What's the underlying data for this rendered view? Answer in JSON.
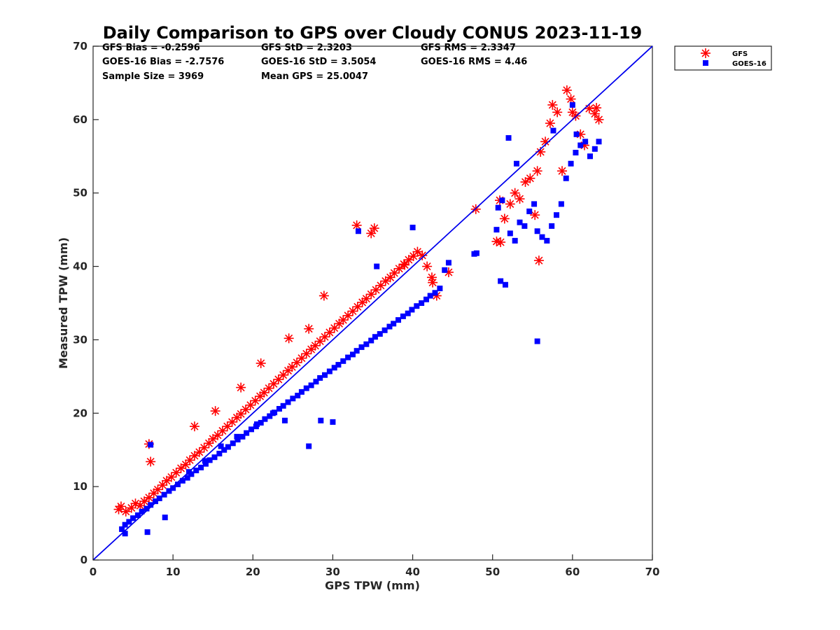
{
  "chart_data": {
    "type": "scatter",
    "title": "Daily Comparison to GPS over Cloudy CONUS 2023-11-19",
    "xlabel": "GPS TPW (mm)",
    "ylabel": "Measured TPW (mm)",
    "xlim": [
      0,
      70
    ],
    "ylim": [
      0,
      70
    ],
    "xticks": [
      "0",
      "10",
      "20",
      "30",
      "40",
      "50",
      "60",
      "70"
    ],
    "yticks": [
      "0",
      "10",
      "20",
      "30",
      "40",
      "50",
      "60",
      "70"
    ],
    "grid": false,
    "legend_position": "outside top-right",
    "reference_line": {
      "x": [
        0,
        70
      ],
      "y": [
        0,
        70
      ],
      "color": "#0000ee"
    },
    "stats": [
      [
        "GFS Bias = -0.2596",
        "GFS StD = 2.3203",
        "GFS RMS = 2.3347"
      ],
      [
        "GOES-16 Bias = -2.7576",
        "GOES-16 StD = 3.5054",
        "GOES-16 RMS = 4.46"
      ],
      [
        "Sample Size = 3969",
        "Mean GPS = 25.0047",
        ""
      ]
    ],
    "series": [
      {
        "name": "GFS",
        "marker": "asterisk",
        "color": "#ff0000",
        "bias_note_only": false,
        "x": [
          3.2,
          3.5,
          4.1,
          4.8,
          5.3,
          5.9,
          6.4,
          7.0,
          7.6,
          8.1,
          8.7,
          9.2,
          9.8,
          10.4,
          11.0,
          11.6,
          12.1,
          12.7,
          13.3,
          13.9,
          14.5,
          15.0,
          15.6,
          16.2,
          16.8,
          17.4,
          18.0,
          18.5,
          19.1,
          19.7,
          20.3,
          20.9,
          21.4,
          22.0,
          22.6,
          23.2,
          23.8,
          24.4,
          24.9,
          25.5,
          26.1,
          26.7,
          27.3,
          27.8,
          28.4,
          29.0,
          29.6,
          30.2,
          30.8,
          31.3,
          31.9,
          32.5,
          33.1,
          33.7,
          34.2,
          34.8,
          35.4,
          36.0,
          36.6,
          37.2,
          37.7,
          38.3,
          38.9,
          39.5,
          40.1,
          40.6,
          41.2,
          41.8,
          42.4,
          43.0,
          44.5,
          47.9,
          50.5,
          50.9,
          51.5,
          52.2,
          52.8,
          53.4,
          54.1,
          54.7,
          55.3,
          55.6,
          56.0,
          56.6,
          57.2,
          57.5,
          58.1,
          58.7,
          59.3,
          59.8,
          60.4,
          61.0,
          61.5,
          62.1,
          62.8,
          63.3,
          7.0,
          7.2,
          12.7,
          15.3,
          18.5,
          21.0,
          24.5,
          27.0,
          28.9,
          33.0,
          34.8,
          35.2,
          39.0,
          42.5,
          55.8,
          51.0,
          60.0,
          63.0
        ],
        "y": [
          6.9,
          7.3,
          6.6,
          7.1,
          7.7,
          7.4,
          8.0,
          8.5,
          9.1,
          9.6,
          10.2,
          10.8,
          11.3,
          11.9,
          12.5,
          13.0,
          13.6,
          14.2,
          14.7,
          15.3,
          15.9,
          16.5,
          17.0,
          17.6,
          18.2,
          18.8,
          19.4,
          19.9,
          20.5,
          21.1,
          21.7,
          22.3,
          22.8,
          23.4,
          24.0,
          24.6,
          25.2,
          25.8,
          26.3,
          26.9,
          27.5,
          28.1,
          28.7,
          29.2,
          29.8,
          30.4,
          31.0,
          31.6,
          32.2,
          32.7,
          33.3,
          33.9,
          34.5,
          35.1,
          35.6,
          36.2,
          36.8,
          37.4,
          38.0,
          38.5,
          39.1,
          39.7,
          40.3,
          40.9,
          41.4,
          42.0,
          41.5,
          40.0,
          38.5,
          36.0,
          39.2,
          47.8,
          43.4,
          49.0,
          46.5,
          48.5,
          50.0,
          49.2,
          51.5,
          52.0,
          47.0,
          53.0,
          55.6,
          57.0,
          59.5,
          62.0,
          61.0,
          53.0,
          64.0,
          62.8,
          60.5,
          58.0,
          56.5,
          61.5,
          60.8,
          60.0,
          15.8,
          13.4,
          18.2,
          20.3,
          23.5,
          26.8,
          30.2,
          31.5,
          36.0,
          45.6,
          44.5,
          45.2,
          40.2,
          37.8,
          40.8,
          43.3,
          61.0,
          61.6
        ]
      },
      {
        "name": "GOES-16",
        "marker": "square",
        "color": "#0000ff",
        "x": [
          3.6,
          4.0,
          4.5,
          5.0,
          5.6,
          6.1,
          6.7,
          7.2,
          7.8,
          8.3,
          8.9,
          9.5,
          10.0,
          10.6,
          11.2,
          11.8,
          12.3,
          12.9,
          13.5,
          14.1,
          14.6,
          15.2,
          15.8,
          16.4,
          16.9,
          17.5,
          18.1,
          18.7,
          19.2,
          19.8,
          20.4,
          21.0,
          21.5,
          22.1,
          22.7,
          23.3,
          23.8,
          24.4,
          25.0,
          25.6,
          26.1,
          26.7,
          27.3,
          27.9,
          28.4,
          29.0,
          29.6,
          30.2,
          30.7,
          31.3,
          31.9,
          32.5,
          33.0,
          33.6,
          34.2,
          34.8,
          35.3,
          35.9,
          36.5,
          37.1,
          37.6,
          38.2,
          38.8,
          39.4,
          39.9,
          40.5,
          41.1,
          41.7,
          42.2,
          42.8,
          43.4,
          44.0,
          44.5,
          48.0,
          50.5,
          51.0,
          51.6,
          52.2,
          52.8,
          53.4,
          54.0,
          54.6,
          55.2,
          55.6,
          56.2,
          56.8,
          57.4,
          58.0,
          58.6,
          59.2,
          59.8,
          60.4,
          61.0,
          61.6,
          62.2,
          62.8,
          63.3,
          4.0,
          6.8,
          7.2,
          9.0,
          12.0,
          14.0,
          16.0,
          18.0,
          20.5,
          22.5,
          24.0,
          27.0,
          28.5,
          30.0,
          33.2,
          35.5,
          40.0,
          47.7,
          50.7,
          51.2,
          52.0,
          53.0,
          55.6,
          57.6,
          60.0,
          60.5
        ],
        "y": [
          4.2,
          4.8,
          5.2,
          5.7,
          6.1,
          6.6,
          7.0,
          7.5,
          8.0,
          8.4,
          8.9,
          9.4,
          9.8,
          10.3,
          10.8,
          11.2,
          11.7,
          12.2,
          12.6,
          13.1,
          13.6,
          14.0,
          14.5,
          15.0,
          15.4,
          15.9,
          16.4,
          16.8,
          17.3,
          17.8,
          18.2,
          18.7,
          19.2,
          19.6,
          20.1,
          20.6,
          21.0,
          21.5,
          22.0,
          22.4,
          22.9,
          23.4,
          23.8,
          24.3,
          24.8,
          25.2,
          25.7,
          26.2,
          26.6,
          27.1,
          27.6,
          28.0,
          28.5,
          29.0,
          29.4,
          29.9,
          30.4,
          30.8,
          31.3,
          31.8,
          32.2,
          32.7,
          33.2,
          33.6,
          34.1,
          34.6,
          35.0,
          35.5,
          36.0,
          36.4,
          37.0,
          39.5,
          40.5,
          41.8,
          45.0,
          38.0,
          37.5,
          44.5,
          43.5,
          46.0,
          45.5,
          47.5,
          48.5,
          29.8,
          44.0,
          43.5,
          45.5,
          47.0,
          48.5,
          52.0,
          54.0,
          55.5,
          56.5,
          57.0,
          55.0,
          56.0,
          57.0,
          3.6,
          3.8,
          15.7,
          5.8,
          12.0,
          13.5,
          15.5,
          16.8,
          18.5,
          20.0,
          19.0,
          15.5,
          19.0,
          18.8,
          44.8,
          40.0,
          45.3,
          41.7,
          48.0,
          49.0,
          57.5,
          54.0,
          44.8,
          58.5,
          62.0,
          58.0
        ]
      }
    ]
  }
}
